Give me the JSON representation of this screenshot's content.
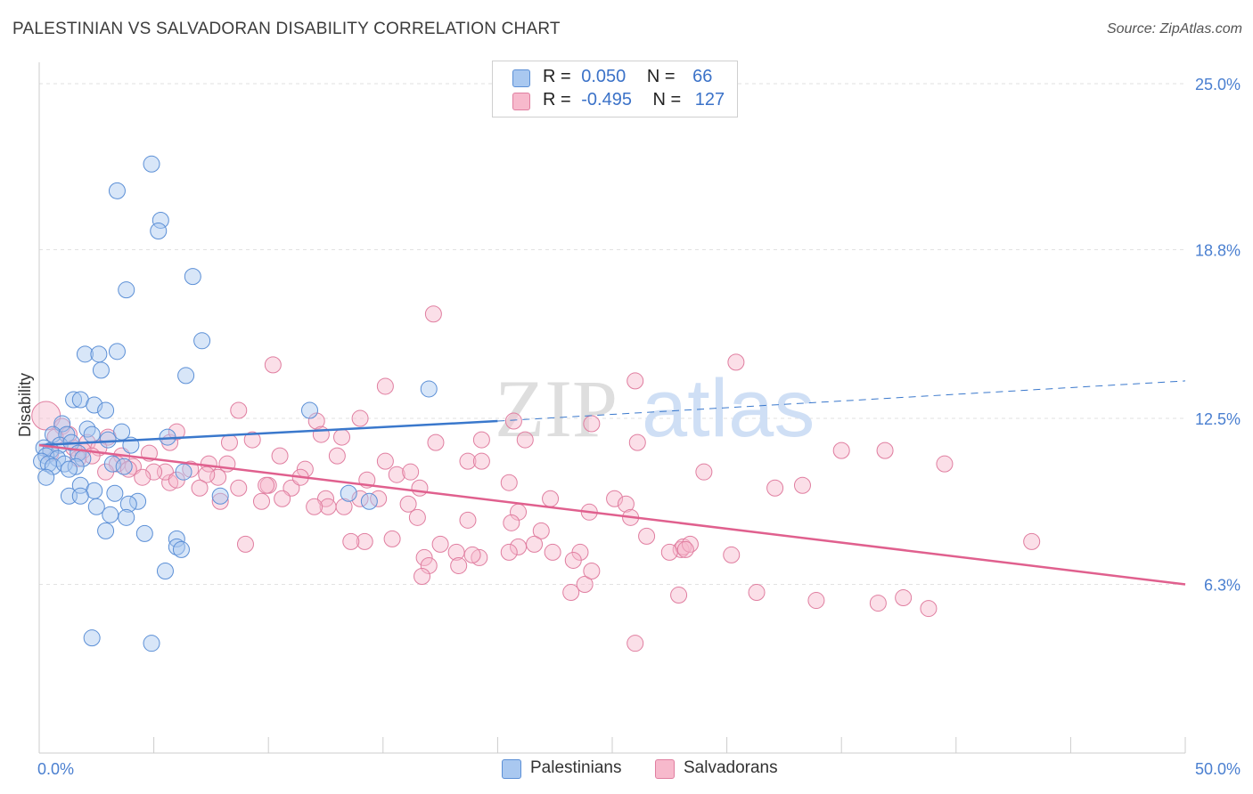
{
  "header": {
    "title": "PALESTINIAN VS SALVADORAN DISABILITY CORRELATION CHART",
    "source": "Source: ZipAtlas.com"
  },
  "watermark": {
    "zip": "ZIP",
    "atlas": "atlas"
  },
  "legend": {
    "r_label": "R =",
    "n_label": "N =",
    "series": [
      {
        "name": "Palestinians",
        "r": "0.050",
        "n": "66",
        "fill": "#a9c8f0",
        "stroke": "#5b8fd6"
      },
      {
        "name": "Salvadorans",
        "r": "-0.495",
        "n": "127",
        "fill": "#f7b9cc",
        "stroke": "#e07ea0"
      }
    ]
  },
  "chart_data": {
    "type": "scatter",
    "title": "PALESTINIAN VS SALVADORAN DISABILITY CORRELATION CHART",
    "xlabel": "",
    "ylabel": "Disability",
    "xlim": [
      0,
      50
    ],
    "ylim": [
      0,
      25.8
    ],
    "x_tick_labels": [
      "0.0%",
      "50.0%"
    ],
    "y_ticks": [
      6.3,
      12.5,
      18.8,
      25.0
    ],
    "y_tick_labels": [
      "6.3%",
      "12.5%",
      "18.8%",
      "25.0%"
    ],
    "grid": true,
    "legend_position": "top-center",
    "series": [
      {
        "name": "Palestinians",
        "color": "#5b8fd6",
        "trend": {
          "x": [
            0,
            20
          ],
          "y": [
            11.5,
            12.4
          ],
          "dashed_to": [
            50,
            13.9
          ]
        },
        "points": [
          [
            4.9,
            22.0
          ],
          [
            3.4,
            21.0
          ],
          [
            5.3,
            19.9
          ],
          [
            5.2,
            19.5
          ],
          [
            6.7,
            17.8
          ],
          [
            3.8,
            17.3
          ],
          [
            7.1,
            15.4
          ],
          [
            2.0,
            14.9
          ],
          [
            2.6,
            14.9
          ],
          [
            3.4,
            15.0
          ],
          [
            2.7,
            14.3
          ],
          [
            6.4,
            14.1
          ],
          [
            17.0,
            13.6
          ],
          [
            1.5,
            13.2
          ],
          [
            1.8,
            13.2
          ],
          [
            2.4,
            13.0
          ],
          [
            2.9,
            12.8
          ],
          [
            11.8,
            12.8
          ],
          [
            1.0,
            12.3
          ],
          [
            2.1,
            12.1
          ],
          [
            3.6,
            12.0
          ],
          [
            0.6,
            11.9
          ],
          [
            1.2,
            11.9
          ],
          [
            2.3,
            11.9
          ],
          [
            5.6,
            11.8
          ],
          [
            0.9,
            11.5
          ],
          [
            1.4,
            11.6
          ],
          [
            3.0,
            11.7
          ],
          [
            4.0,
            11.5
          ],
          [
            0.2,
            11.4
          ],
          [
            0.5,
            11.3
          ],
          [
            1.7,
            11.2
          ],
          [
            0.3,
            11.1
          ],
          [
            0.8,
            11.0
          ],
          [
            1.9,
            11.0
          ],
          [
            0.1,
            10.9
          ],
          [
            0.4,
            10.8
          ],
          [
            0.6,
            10.7
          ],
          [
            1.1,
            10.8
          ],
          [
            1.6,
            10.7
          ],
          [
            3.2,
            10.8
          ],
          [
            3.7,
            10.7
          ],
          [
            1.3,
            10.6
          ],
          [
            6.3,
            10.5
          ],
          [
            0.3,
            10.3
          ],
          [
            1.8,
            10.0
          ],
          [
            2.4,
            9.8
          ],
          [
            3.3,
            9.7
          ],
          [
            1.3,
            9.6
          ],
          [
            1.8,
            9.6
          ],
          [
            7.9,
            9.6
          ],
          [
            13.5,
            9.7
          ],
          [
            4.3,
            9.4
          ],
          [
            3.9,
            9.3
          ],
          [
            14.4,
            9.4
          ],
          [
            2.5,
            9.2
          ],
          [
            3.1,
            8.9
          ],
          [
            3.8,
            8.8
          ],
          [
            2.9,
            8.3
          ],
          [
            4.6,
            8.2
          ],
          [
            6.0,
            8.0
          ],
          [
            6.0,
            7.7
          ],
          [
            6.2,
            7.6
          ],
          [
            5.5,
            6.8
          ],
          [
            2.3,
            4.3
          ],
          [
            4.9,
            4.1
          ]
        ]
      },
      {
        "name": "Salvadorans",
        "color": "#e07ea0",
        "trend": {
          "x": [
            0,
            50
          ],
          "y": [
            11.5,
            6.3
          ]
        },
        "points": [
          [
            0.3,
            12.6
          ],
          [
            1.0,
            12.2
          ],
          [
            1.3,
            11.9
          ],
          [
            0.7,
            11.8
          ],
          [
            2.1,
            11.6
          ],
          [
            3.0,
            11.8
          ],
          [
            1.5,
            11.4
          ],
          [
            2.6,
            11.4
          ],
          [
            1.9,
            11.3
          ],
          [
            0.5,
            11.2
          ],
          [
            2.3,
            11.1
          ],
          [
            3.6,
            11.1
          ],
          [
            1.7,
            11.0
          ],
          [
            4.8,
            11.2
          ],
          [
            3.4,
            10.8
          ],
          [
            5.7,
            11.6
          ],
          [
            4.1,
            10.7
          ],
          [
            6.0,
            12.0
          ],
          [
            7.4,
            10.8
          ],
          [
            8.3,
            11.6
          ],
          [
            9.3,
            11.7
          ],
          [
            10.5,
            11.1
          ],
          [
            12.1,
            12.4
          ],
          [
            12.3,
            11.9
          ],
          [
            14.0,
            12.5
          ],
          [
            13.0,
            11.1
          ],
          [
            13.2,
            11.8
          ],
          [
            11.6,
            10.6
          ],
          [
            14.3,
            10.2
          ],
          [
            15.1,
            10.9
          ],
          [
            15.6,
            10.4
          ],
          [
            16.2,
            10.5
          ],
          [
            17.3,
            11.6
          ],
          [
            16.6,
            9.9
          ],
          [
            18.7,
            10.9
          ],
          [
            19.3,
            10.9
          ],
          [
            20.5,
            10.1
          ],
          [
            20.7,
            12.4
          ],
          [
            21.2,
            11.7
          ],
          [
            19.3,
            11.7
          ],
          [
            8.7,
            12.8
          ],
          [
            10.2,
            14.5
          ],
          [
            15.1,
            13.7
          ],
          [
            17.2,
            16.4
          ],
          [
            26.0,
            13.9
          ],
          [
            30.4,
            14.6
          ],
          [
            26.1,
            11.6
          ],
          [
            24.1,
            12.3
          ],
          [
            29.0,
            10.5
          ],
          [
            35.0,
            11.3
          ],
          [
            39.5,
            10.8
          ],
          [
            32.1,
            9.9
          ],
          [
            33.3,
            10.0
          ],
          [
            22.3,
            9.5
          ],
          [
            25.1,
            9.5
          ],
          [
            25.6,
            9.3
          ],
          [
            25.8,
            8.8
          ],
          [
            24.0,
            9.0
          ],
          [
            20.9,
            9.0
          ],
          [
            18.7,
            8.7
          ],
          [
            16.5,
            8.8
          ],
          [
            14.0,
            9.5
          ],
          [
            13.3,
            9.2
          ],
          [
            12.5,
            9.5
          ],
          [
            12.6,
            9.2
          ],
          [
            11.0,
            9.9
          ],
          [
            10.0,
            10.0
          ],
          [
            9.7,
            9.4
          ],
          [
            8.2,
            10.8
          ],
          [
            7.8,
            10.3
          ],
          [
            7.3,
            10.4
          ],
          [
            6.6,
            10.6
          ],
          [
            5.7,
            10.1
          ],
          [
            5.5,
            10.5
          ],
          [
            5.0,
            10.5
          ],
          [
            4.5,
            10.3
          ],
          [
            3.9,
            10.6
          ],
          [
            2.9,
            10.5
          ],
          [
            6.0,
            10.2
          ],
          [
            7.0,
            9.9
          ],
          [
            7.9,
            9.4
          ],
          [
            8.7,
            9.9
          ],
          [
            9.9,
            10.0
          ],
          [
            10.6,
            9.5
          ],
          [
            11.4,
            10.3
          ],
          [
            12.0,
            9.2
          ],
          [
            14.8,
            9.5
          ],
          [
            16.1,
            9.3
          ],
          [
            20.6,
            8.6
          ],
          [
            21.9,
            8.3
          ],
          [
            21.6,
            7.8
          ],
          [
            20.9,
            7.7
          ],
          [
            20.5,
            7.5
          ],
          [
            19.2,
            7.3
          ],
          [
            18.9,
            7.4
          ],
          [
            18.2,
            7.5
          ],
          [
            17.5,
            7.8
          ],
          [
            16.8,
            7.3
          ],
          [
            15.4,
            8.0
          ],
          [
            14.2,
            7.9
          ],
          [
            13.6,
            7.9
          ],
          [
            9.0,
            7.8
          ],
          [
            17.0,
            7.0
          ],
          [
            16.7,
            6.6
          ],
          [
            18.3,
            7.0
          ],
          [
            22.4,
            7.5
          ],
          [
            23.6,
            7.5
          ],
          [
            23.8,
            6.3
          ],
          [
            23.2,
            6.0
          ],
          [
            24.1,
            6.8
          ],
          [
            23.3,
            7.2
          ],
          [
            28.0,
            7.6
          ],
          [
            28.1,
            7.7
          ],
          [
            28.4,
            7.8
          ],
          [
            30.2,
            7.4
          ],
          [
            27.9,
            5.9
          ],
          [
            31.3,
            6.0
          ],
          [
            33.9,
            5.7
          ],
          [
            36.6,
            5.6
          ],
          [
            37.7,
            5.8
          ],
          [
            38.8,
            5.4
          ],
          [
            26.0,
            4.1
          ],
          [
            43.3,
            7.9
          ],
          [
            36.9,
            11.3
          ],
          [
            28.2,
            7.6
          ],
          [
            27.5,
            7.5
          ],
          [
            26.5,
            8.1
          ]
        ]
      }
    ]
  }
}
